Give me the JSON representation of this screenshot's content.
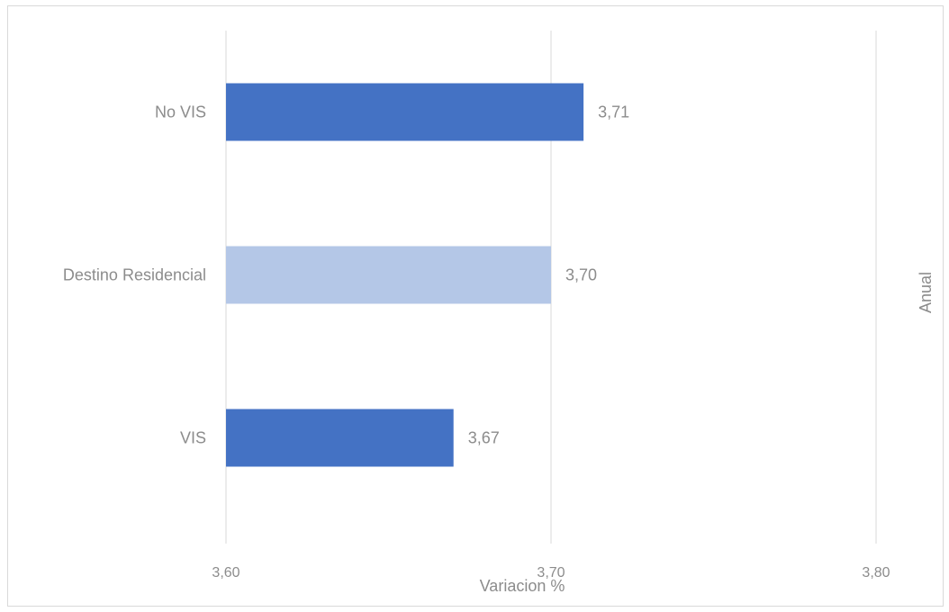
{
  "chart_data": {
    "type": "bar",
    "orientation": "horizontal",
    "title": "",
    "categories": [
      "No VIS",
      "Destino Residencial",
      "VIS"
    ],
    "values": [
      3.71,
      3.7,
      3.67
    ],
    "value_labels": [
      "3,71",
      "3,70",
      "3,67"
    ],
    "bar_colors": [
      "#4472c4",
      "#b4c7e7",
      "#4472c4"
    ],
    "xlabel": "Variacion %",
    "ylabel": "",
    "secondary_axis_label": "Anual",
    "xlim": [
      3.6,
      3.8
    ],
    "x_ticks": [
      3.6,
      3.7,
      3.8
    ],
    "x_tick_labels": [
      "3,60",
      "3,70",
      "3,80"
    ],
    "grid": true,
    "legend": "none",
    "colors": {
      "gridline": "#d9d9d9",
      "text": "#8c8c8c"
    }
  }
}
